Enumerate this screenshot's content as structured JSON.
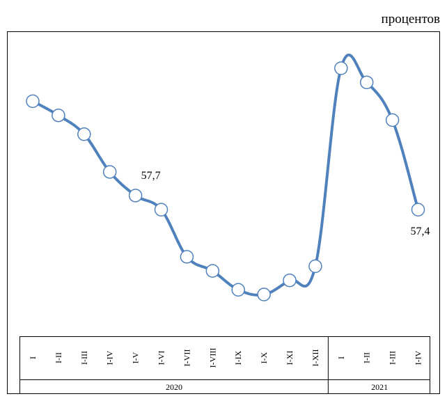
{
  "chart_data": {
    "type": "line",
    "unit": "процентов",
    "groups": [
      {
        "label": "2020",
        "categories": [
          "I",
          "I-II",
          "I-III",
          "I-IV",
          "I-V",
          "I-VI",
          "I-VII",
          "I-VIII",
          "I-IX",
          "I-X",
          "I-XI",
          "I-XII"
        ]
      },
      {
        "label": "2021",
        "categories": [
          "I",
          "I-II",
          "I-III",
          "I-IV"
        ]
      }
    ],
    "values": [
      59.7,
      59.4,
      59.0,
      58.2,
      57.7,
      57.4,
      56.4,
      56.1,
      55.7,
      55.6,
      55.9,
      56.2,
      60.4,
      60.1,
      59.3,
      57.4
    ],
    "value_labels": [
      null,
      null,
      null,
      null,
      "57,7",
      null,
      null,
      null,
      null,
      null,
      null,
      null,
      null,
      null,
      null,
      "57,4"
    ],
    "color": "#4f81bd",
    "marker_fill": "#ffffff"
  }
}
